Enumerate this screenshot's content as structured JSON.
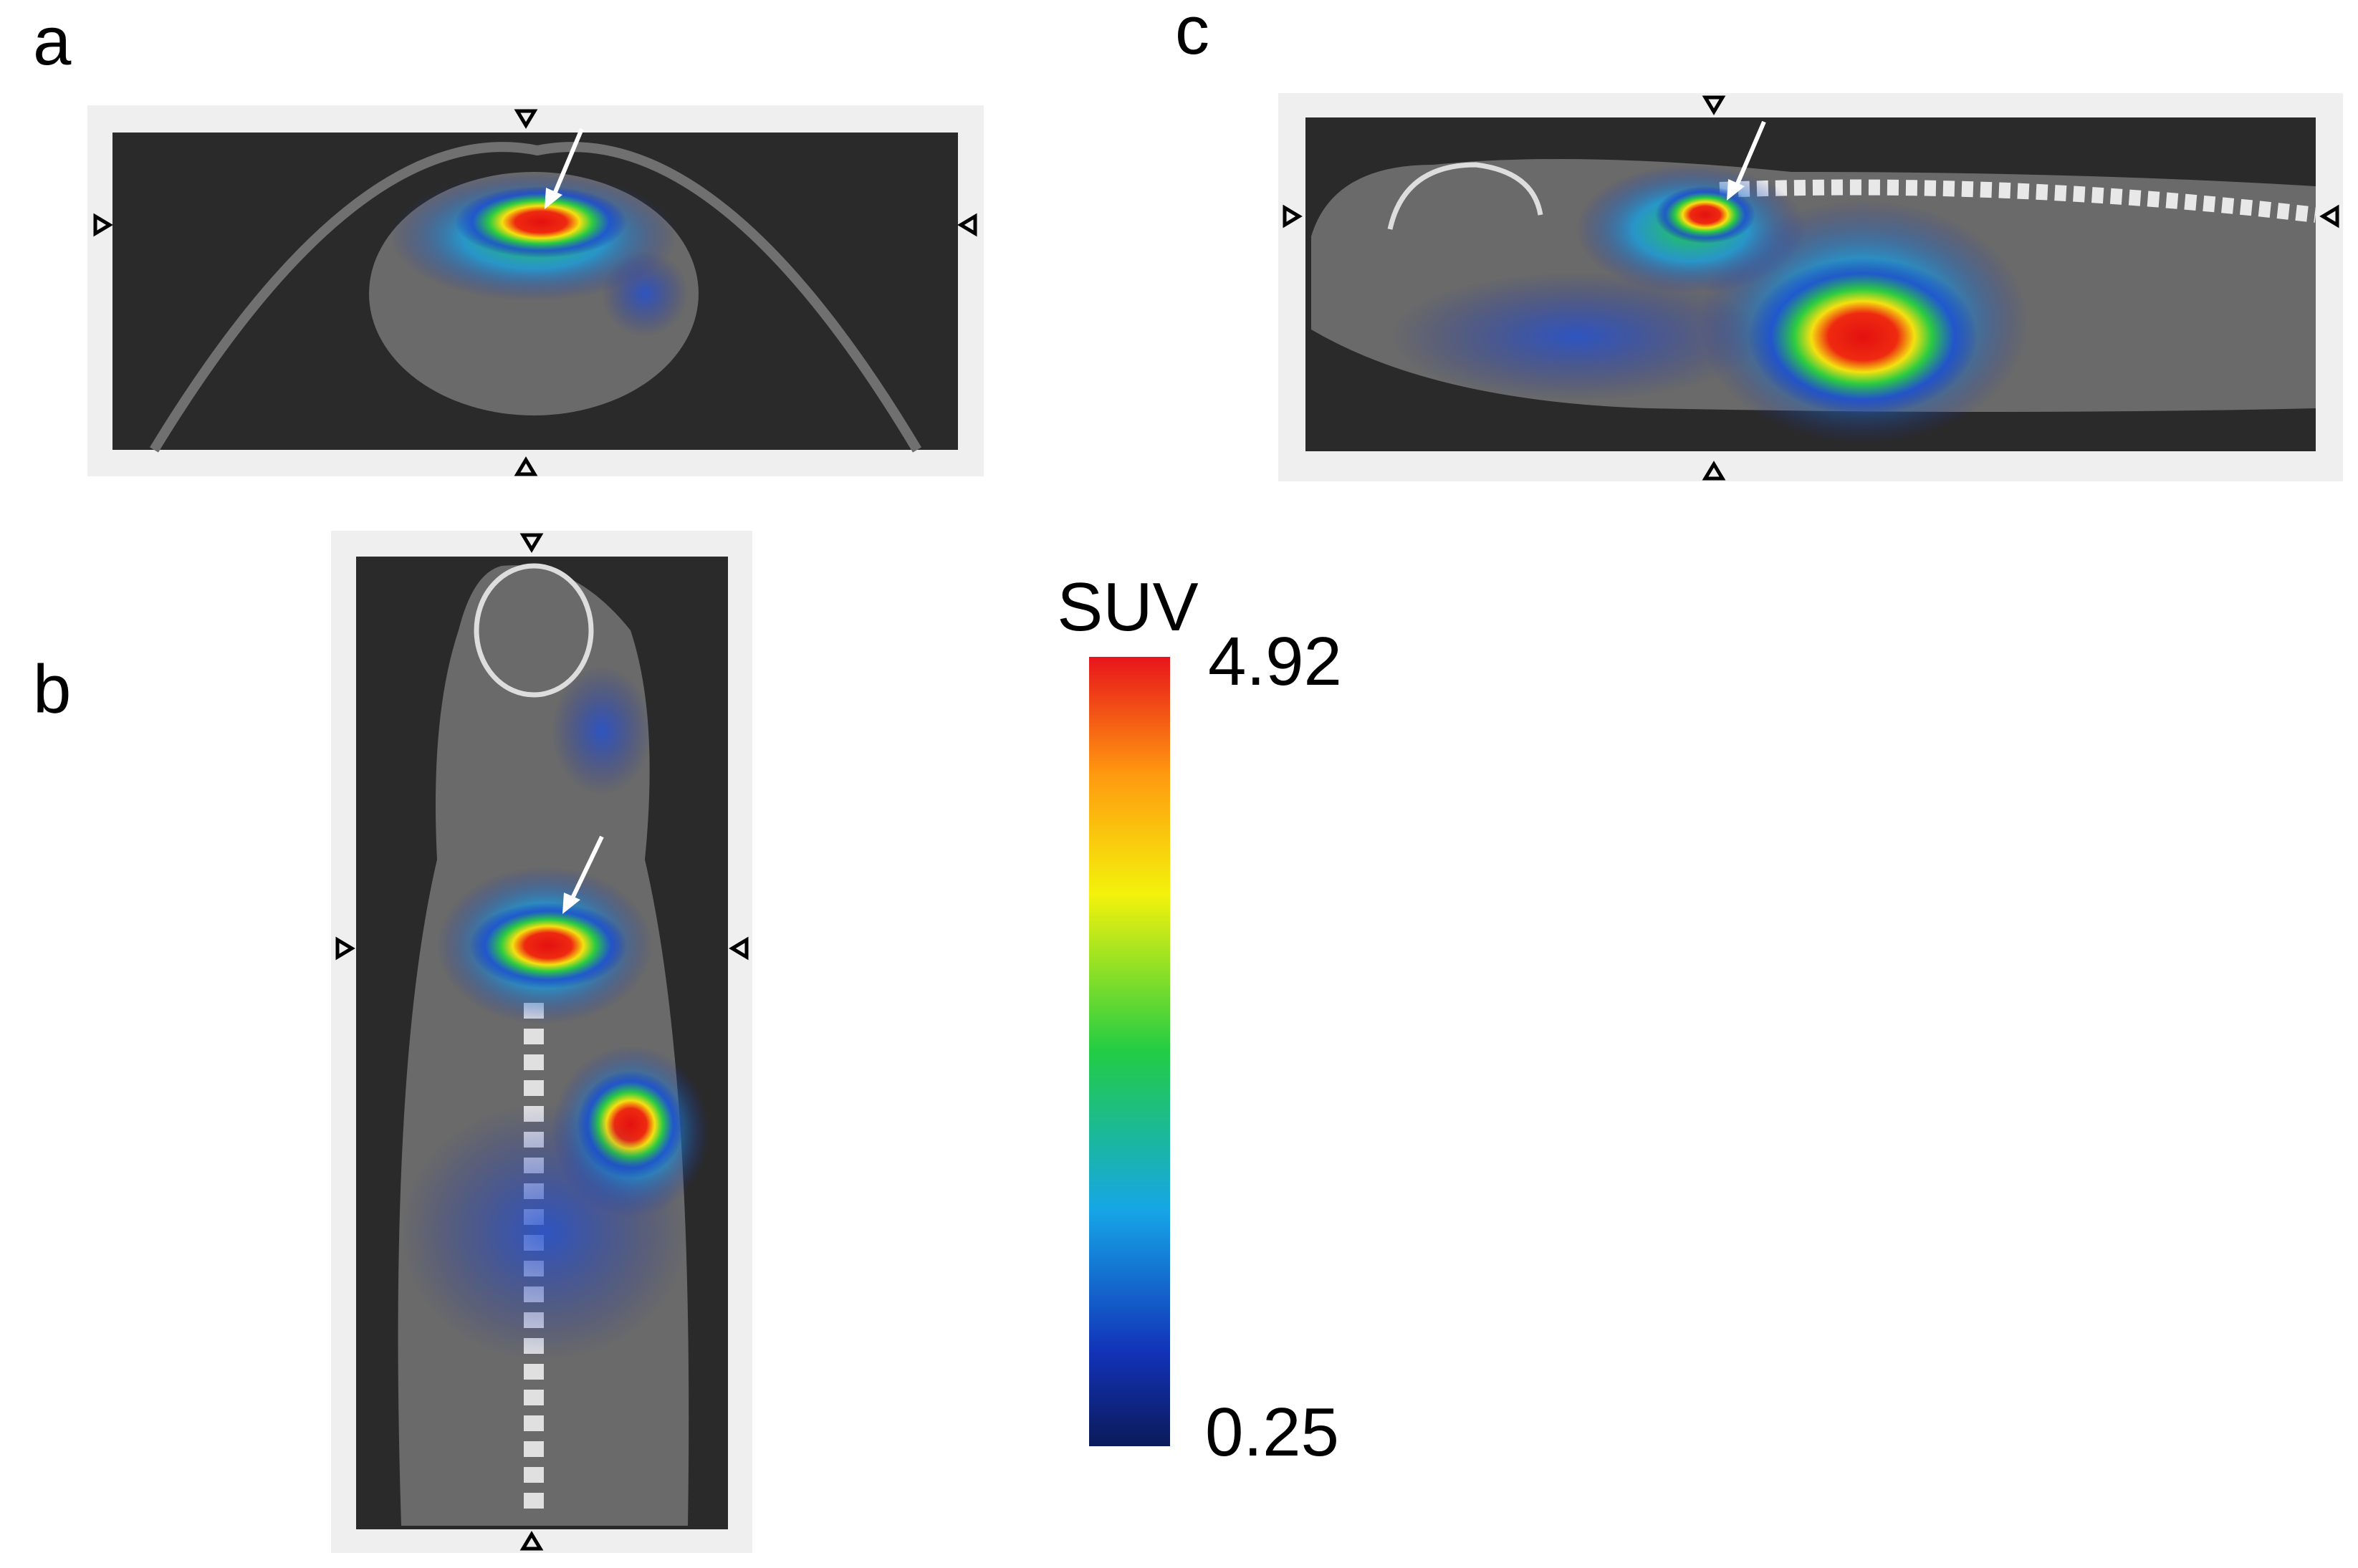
{
  "panels": {
    "a": "a",
    "b": "b",
    "c": "c"
  },
  "colorbar": {
    "label": "SUV",
    "max": 4.92,
    "min": 0.25
  }
}
